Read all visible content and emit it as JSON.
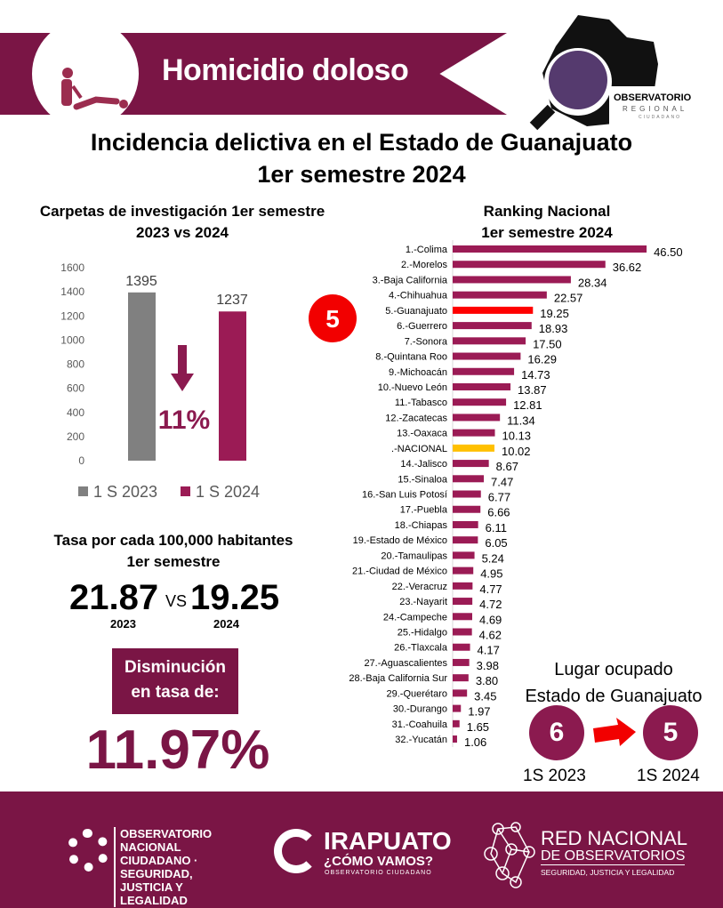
{
  "banner": {
    "title": "Homicidio doloso",
    "icon": "homicide-figure-icon"
  },
  "logo_top": {
    "line1": "OBSERVATORIO",
    "line2": "REGIONAL",
    "line3": "CIUDADANO"
  },
  "title": {
    "line1": "Incidencia delictiva en el Estado de Guanajuato",
    "line2": "1er semestre 2024"
  },
  "chart_data": [
    {
      "type": "bar",
      "title": "Carpetas de investigación 1er semestre 2023 vs 2024",
      "categories": [
        "1 S 2023",
        "1 S 2024"
      ],
      "values": [
        1395,
        1237
      ],
      "ylim": [
        0,
        1600
      ],
      "yticks": [
        0,
        200,
        400,
        600,
        800,
        1000,
        1200,
        1400,
        1600
      ],
      "legend": [
        "1 S 2023",
        "1 S 2024"
      ],
      "legend_placement": "bottom",
      "annotation": "11%",
      "colors": [
        "#808080",
        "#9b1b55"
      ]
    },
    {
      "type": "bar",
      "orientation": "horizontal",
      "title": "Ranking Nacional 1er semestre 2024",
      "categories": [
        "1.-Colima",
        "2.-Morelos",
        "3.-Baja California",
        "4.-Chihuahua",
        "5.-Guanajuato",
        "6.-Guerrero",
        "7.-Sonora",
        "8.-Quintana Roo",
        "9.-Michoacán",
        "10.-Nuevo León",
        "11.-Tabasco",
        "12.-Zacatecas",
        "13.-Oaxaca",
        ".-NACIONAL",
        "14.-Jalisco",
        "15.-Sinaloa",
        "16.-San Luis Potosí",
        "17.-Puebla",
        "18.-Chiapas",
        "19.-Estado de México",
        "20.-Tamaulipas",
        "21.-Ciudad de México",
        "22.-Veracruz",
        "23.-Nayarit",
        "24.-Campeche",
        "25.-Hidalgo",
        "26.-Tlaxcala",
        "27.-Aguascalientes",
        "28.-Baja California Sur",
        "29.-Querétaro",
        "30.-Durango",
        "31.-Coahuila",
        "32.-Yucatán"
      ],
      "values": [
        46.5,
        36.62,
        28.34,
        22.57,
        19.25,
        18.93,
        17.5,
        16.29,
        14.73,
        13.87,
        12.81,
        11.34,
        10.13,
        10.02,
        8.67,
        7.47,
        6.77,
        6.66,
        6.11,
        6.05,
        5.24,
        4.95,
        4.77,
        4.72,
        4.69,
        4.62,
        4.17,
        3.98,
        3.8,
        3.45,
        1.97,
        1.65,
        1.06
      ],
      "labels": [
        "46.50",
        "36.62",
        "28.34",
        "22.57",
        "19.25",
        "18.93",
        "17.50",
        "16.29",
        "14.73",
        "13.87",
        "12.81",
        "11.34",
        "10.13",
        "10.02",
        "8.67",
        "7.47",
        "6.77",
        "6.66",
        "6.11",
        "6.05",
        "5.24",
        "4.95",
        "4.77",
        "4.72",
        "4.69",
        "4.62",
        "4.17",
        "3.98",
        "3.80",
        "3.45",
        "1.97",
        "1.65",
        "1.06"
      ],
      "highlight": {
        "5.-Guanajuato": "#ff0000",
        ".-NACIONAL": "#ffc000"
      },
      "default_color": "#9b1b55",
      "badge": "5"
    }
  ],
  "left": {
    "chart_title1": "Carpetas de investigación 1er semestre",
    "chart_title2": "2023 vs 2024"
  },
  "right": {
    "chart_title1": "Ranking Nacional",
    "chart_title2": "1er semestre 2024"
  },
  "tasa": {
    "title1": "Tasa por cada 100,000 habitantes",
    "title2": "1er semestre",
    "v2023": "21.87",
    "vs": "VS",
    "v2024": "19.25",
    "y2023": "2023",
    "y2024": "2024"
  },
  "disminucion": {
    "line1": "Disminución",
    "line2": "en tasa de:",
    "value": "11.97%"
  },
  "lugar": {
    "line1": "Lugar ocupado",
    "line2": "Estado de Guanajuato",
    "from": "6",
    "to": "5",
    "from_label": "1S 2023",
    "to_label": "1S 2024"
  },
  "footer": {
    "logo1": "OBSERVATORIO NACIONAL CIUDADANO · SEGURIDAD, JUSTICIA Y LEGALIDAD",
    "logo2a": "IRAPUATO",
    "logo2b": "¿CÓMO VAMOS?",
    "logo2c": "OBSERVATORIO CIUDADANO",
    "logo3a": "RED NACIONAL",
    "logo3b": "DE OBSERVATORIOS",
    "logo3c": "SEGURIDAD, JUSTICIA Y LEGALIDAD"
  },
  "colors": {
    "maroon": "#7a1545",
    "bar": "#9b1b55",
    "red": "#ff0000",
    "gold": "#ffc000"
  }
}
